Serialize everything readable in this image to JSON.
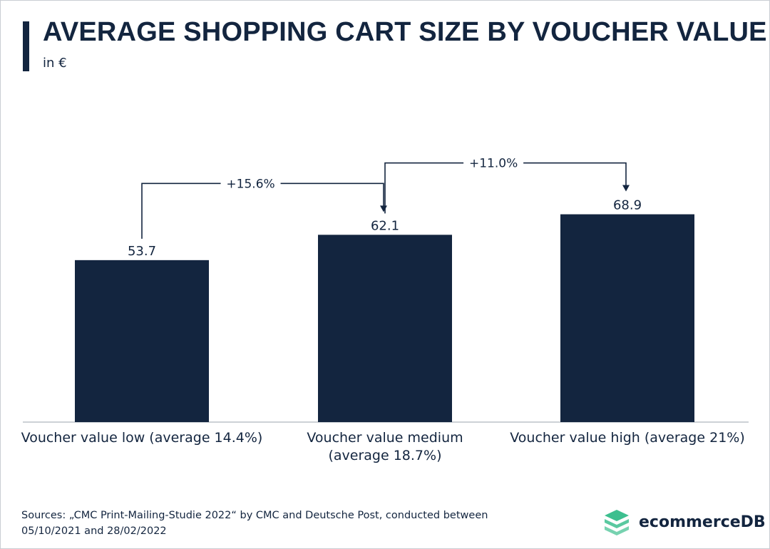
{
  "chart_data": {
    "type": "bar",
    "title": "AVERAGE SHOPPING CART SIZE BY VOUCHER VALUE",
    "subtitle": "in €",
    "categories": [
      [
        "Voucher value low (average 14.4%)"
      ],
      [
        "Voucher value medium",
        "(average 18.7%)"
      ],
      [
        "Voucher value high (average 21%)"
      ]
    ],
    "values": [
      53.7,
      62.1,
      68.9
    ],
    "value_labels": [
      "53.7",
      "62.1",
      "68.9"
    ],
    "ylim": [
      0,
      80
    ],
    "grid": false,
    "bar_color": "#13253f",
    "annotations": [
      {
        "from": 0,
        "to": 1,
        "label": "+15.6%"
      },
      {
        "from": 1,
        "to": 2,
        "label": "+11.0%"
      }
    ]
  },
  "source": "Sources: „CMC Print-Mailing-Studie 2022“ by CMC and Deutsche Post, conducted between 05/10/2021 and 28/02/2022",
  "logo": {
    "text": "ecommerceDB",
    "icon": "stacked-layers-icon",
    "color": "#3dbf8f"
  }
}
